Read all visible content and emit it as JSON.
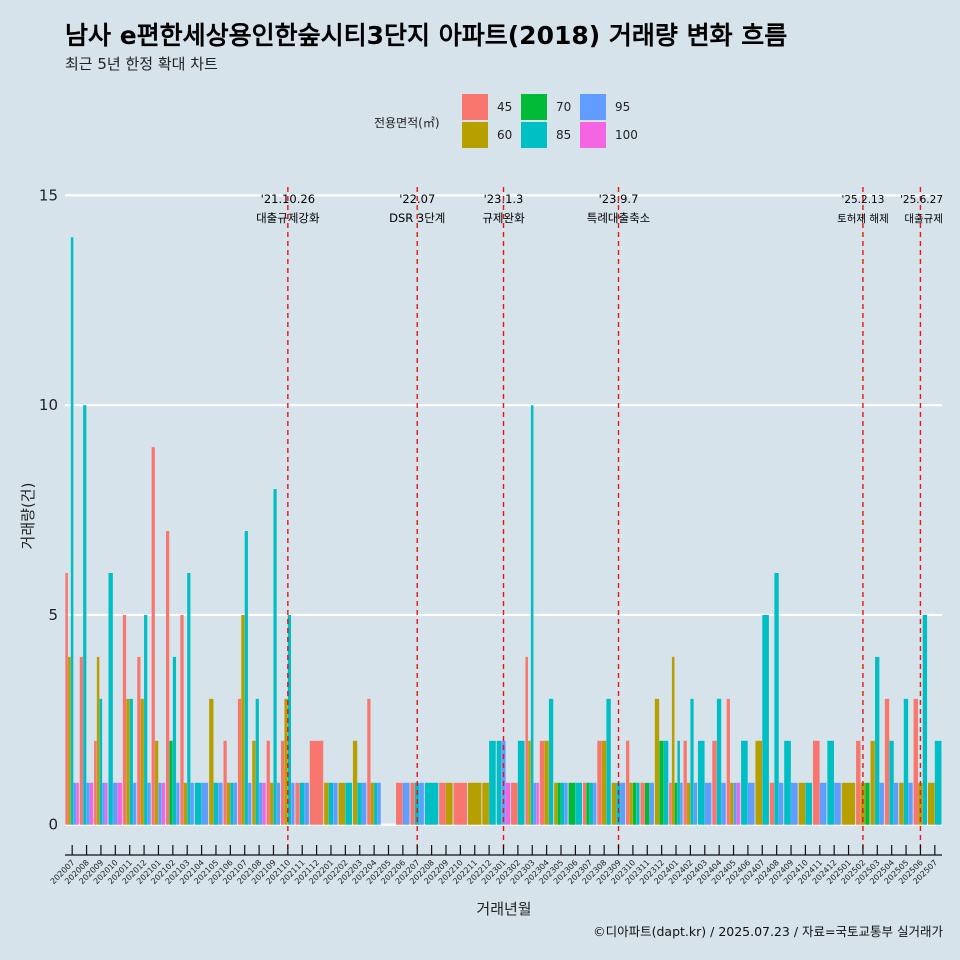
{
  "title": "남사 e편한세상용인한숲시티3단지 아파트(2018) 거래량 변화 흐름",
  "subtitle": "최근 5년 한정 확대 차트",
  "caption": "©디아파트(dapt.kr) / 2025.07.23 / 자료=국토교통부 실거래가",
  "chart_data": {
    "type": "bar",
    "xlabel": "거래년월",
    "ylabel": "거래량(건)",
    "ylim": [
      -0.65,
      15.2
    ],
    "yticks": [
      0,
      5,
      10,
      15
    ],
    "grid": true,
    "legend": {
      "title": "전용면적(㎡)",
      "position": "top",
      "items": [
        {
          "name": "45",
          "color": "#F8766D"
        },
        {
          "name": "60",
          "color": "#B79F00"
        },
        {
          "name": "70",
          "color": "#00BA38"
        },
        {
          "name": "85",
          "color": "#00BFC4"
        },
        {
          "name": "95",
          "color": "#619CFF"
        },
        {
          "name": "100",
          "color": "#F564E3"
        }
      ]
    },
    "categories": [
      "202007",
      "202008",
      "202009",
      "202010",
      "202011",
      "202012",
      "202101",
      "202102",
      "202103",
      "202104",
      "202105",
      "202106",
      "202107",
      "202108",
      "202109",
      "202110",
      "202111",
      "202112",
      "202201",
      "202202",
      "202203",
      "202204",
      "202205",
      "202206",
      "202207",
      "202208",
      "202209",
      "202210",
      "202211",
      "202212",
      "202301",
      "202302",
      "202303",
      "202304",
      "202305",
      "202306",
      "202307",
      "202308",
      "202309",
      "202310",
      "202311",
      "202312",
      "202401",
      "202402",
      "202403",
      "202404",
      "202405",
      "202406",
      "202407",
      "202408",
      "202409",
      "202410",
      "202411",
      "202412",
      "202501",
      "202502",
      "202503",
      "202504",
      "202505",
      "202506",
      "202507"
    ],
    "series": [
      {
        "name": "45",
        "values": [
          6,
          4,
          2,
          0,
          5,
          4,
          9,
          7,
          5,
          0,
          0,
          2,
          3,
          0,
          2,
          2,
          1,
          2,
          0,
          0,
          0,
          3,
          0,
          1,
          1,
          0,
          1,
          1,
          0,
          0,
          0,
          1,
          4,
          2,
          0,
          0,
          1,
          2,
          0,
          2,
          1,
          0,
          1,
          2,
          0,
          2,
          3,
          0,
          0,
          1,
          0,
          0,
          2,
          0,
          0,
          2,
          0,
          3,
          0,
          3,
          0
        ]
      },
      {
        "name": "60",
        "values": [
          4,
          0,
          4,
          0,
          3,
          3,
          2,
          0,
          1,
          0,
          3,
          1,
          5,
          2,
          1,
          3,
          0,
          0,
          1,
          1,
          2,
          1,
          0,
          0,
          0,
          0,
          1,
          0,
          1,
          1,
          0,
          0,
          2,
          2,
          1,
          0,
          0,
          2,
          1,
          1,
          0,
          3,
          4,
          1,
          0,
          0,
          1,
          0,
          2,
          0,
          0,
          1,
          0,
          0,
          1,
          1,
          2,
          0,
          1,
          1,
          1
        ]
      },
      {
        "name": "70",
        "values": [
          0,
          0,
          0,
          0,
          0,
          0,
          0,
          2,
          0,
          0,
          0,
          0,
          0,
          0,
          0,
          0,
          0,
          0,
          0,
          0,
          0,
          0,
          0,
          0,
          0,
          0,
          0,
          0,
          0,
          0,
          0,
          0,
          0,
          0,
          1,
          1,
          1,
          0,
          0,
          1,
          1,
          2,
          1,
          0,
          0,
          0,
          0,
          0,
          0,
          0,
          0,
          0,
          0,
          0,
          0,
          1,
          0,
          0,
          0,
          0,
          0
        ]
      },
      {
        "name": "85",
        "values": [
          14,
          10,
          3,
          6,
          3,
          5,
          0,
          4,
          6,
          1,
          1,
          1,
          7,
          3,
          8,
          5,
          1,
          0,
          1,
          1,
          1,
          1,
          0,
          0,
          1,
          1,
          0,
          0,
          0,
          2,
          2,
          2,
          10,
          3,
          1,
          1,
          1,
          3,
          1,
          1,
          0,
          2,
          2,
          3,
          2,
          3,
          0,
          2,
          5,
          6,
          2,
          1,
          0,
          2,
          0,
          0,
          4,
          2,
          3,
          5,
          2
        ]
      },
      {
        "name": "95",
        "values": [
          1,
          1,
          1,
          1,
          1,
          1,
          1,
          1,
          1,
          1,
          1,
          1,
          1,
          1,
          1,
          1,
          1,
          0,
          1,
          0,
          1,
          1,
          0,
          1,
          1,
          0,
          0,
          0,
          0,
          0,
          2,
          0,
          1,
          0,
          1,
          0,
          1,
          0,
          1,
          0,
          1,
          0,
          1,
          1,
          1,
          1,
          1,
          1,
          0,
          1,
          1,
          0,
          1,
          1,
          0,
          0,
          1,
          1,
          1,
          0,
          0
        ]
      },
      {
        "name": "100",
        "values": [
          1,
          1,
          1,
          1,
          0,
          0,
          1,
          0,
          0,
          0,
          0,
          0,
          0,
          1,
          0,
          0,
          0,
          0,
          0,
          0,
          0,
          0,
          0,
          0,
          0,
          0,
          0,
          0,
          0,
          0,
          1,
          0,
          1,
          0,
          0,
          0,
          0,
          0,
          0,
          0,
          0,
          0,
          0,
          0,
          0,
          0,
          1,
          0,
          0,
          0,
          0,
          0,
          0,
          0,
          0,
          0,
          0,
          0,
          0,
          0,
          0
        ]
      }
    ],
    "annotations": [
      {
        "date": "'21.10.26",
        "text": "대출규제강화",
        "category": "202110"
      },
      {
        "date": "'22.07",
        "text": "DSR 3단계",
        "category": "202207"
      },
      {
        "date": "'23.1.3",
        "text": "규제완화",
        "category": "202301"
      },
      {
        "date": "'23.9.7",
        "text": "특례대출축소",
        "category": "202309"
      },
      {
        "date": "'25.2.13",
        "text": "토허제 해제",
        "category": "202502"
      },
      {
        "date": "'25.6.27",
        "text": "대출규제",
        "category": "202506"
      }
    ]
  }
}
